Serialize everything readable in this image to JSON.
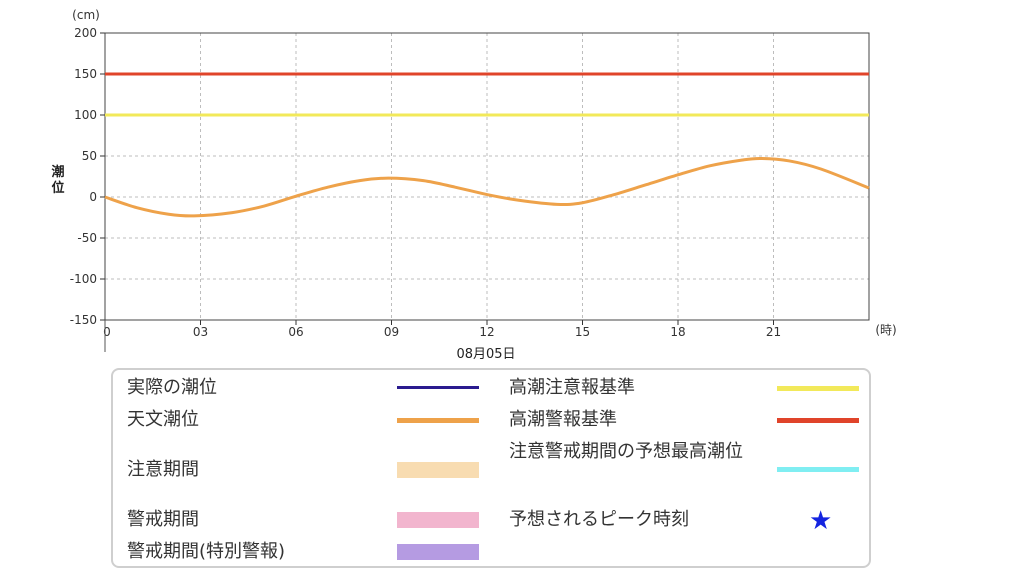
{
  "chart_data": {
    "type": "line",
    "ylabel": "潮位",
    "yunit": "(cm)",
    "xunit": "(時)",
    "date_label": "08月05日",
    "ylim": [
      -150,
      200
    ],
    "yticks": [
      200,
      150,
      100,
      50,
      0,
      -50,
      -100,
      -150
    ],
    "xlim": [
      0,
      24
    ],
    "xticks": [
      0,
      3,
      6,
      9,
      12,
      15,
      18,
      21
    ],
    "xtick_labels": [
      "0",
      "03",
      "06",
      "09",
      "12",
      "15",
      "18",
      "21"
    ],
    "grid": true,
    "series": [
      {
        "name": "高潮警報基準",
        "color": "#e0442a",
        "x": [
          0,
          24
        ],
        "y": [
          150,
          150
        ]
      },
      {
        "name": "高潮注意報基準",
        "color": "#f2e95a",
        "x": [
          0,
          24
        ],
        "y": [
          100,
          100
        ]
      },
      {
        "name": "天文潮位",
        "color": "#eea24a",
        "x": [
          0,
          1,
          2,
          2.8,
          4,
          5,
          6,
          7,
          8,
          8.9,
          10,
          11,
          12,
          13,
          14.2,
          15,
          16,
          17,
          18,
          19,
          20,
          20.6,
          21.5,
          22.5,
          24
        ],
        "y": [
          0,
          -13,
          -21,
          -23,
          -19,
          -11,
          1,
          12,
          20,
          23,
          20,
          12,
          3,
          -4,
          -9,
          -7,
          3,
          15,
          27,
          38,
          45,
          47,
          44,
          34,
          11
        ]
      }
    ]
  },
  "legend": {
    "items": [
      {
        "label": "実際の潮位",
        "color": "#2a1b8f",
        "kind": "line"
      },
      {
        "label": "天文潮位",
        "color": "#eea24a",
        "kind": "line"
      },
      {
        "label": "注意期間",
        "color": "#f8dcb1",
        "kind": "band"
      },
      {
        "label": "警戒期間",
        "color": "#f2b5ce",
        "kind": "band"
      },
      {
        "label": "警戒期間(特別警報)",
        "color": "#b59be2",
        "kind": "band"
      },
      {
        "label": "高潮注意報基準",
        "color": "#f2e95a",
        "kind": "line"
      },
      {
        "label": "高潮警報基準",
        "color": "#e0442a",
        "kind": "line"
      },
      {
        "label": "注意警戒期間の予想最高潮位",
        "color": "#80eef2",
        "kind": "line"
      },
      {
        "label": "予想されるピーク時刻",
        "color": "#1424e0",
        "icon": "star-icon",
        "glyph": "★"
      }
    ]
  }
}
